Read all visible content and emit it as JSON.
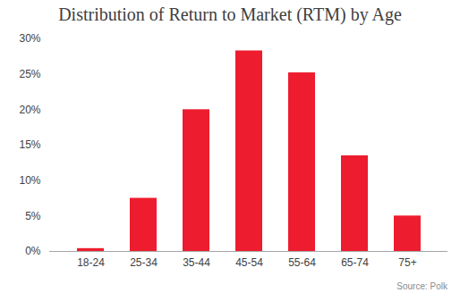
{
  "chart_data": {
    "type": "bar",
    "title": "Distribution of Return to Market (RTM) by Age",
    "source": "Source: Polk",
    "categories": [
      "18-24",
      "25-34",
      "35-44",
      "45-54",
      "55-64",
      "65-74",
      "75+"
    ],
    "values": [
      0.4,
      7.5,
      20,
      28.3,
      25.2,
      13.5,
      5
    ],
    "color": "#ed1c2e",
    "ylim": [
      0,
      30
    ],
    "yticks": [
      {
        "value": 0,
        "label": "0%"
      },
      {
        "value": 5,
        "label": "5%"
      },
      {
        "value": 10,
        "label": "10%"
      },
      {
        "value": 15,
        "label": "15%"
      },
      {
        "value": 20,
        "label": "20%"
      },
      {
        "value": 25,
        "label": "25%"
      },
      {
        "value": 30,
        "label": "30%"
      }
    ],
    "grid": false
  }
}
